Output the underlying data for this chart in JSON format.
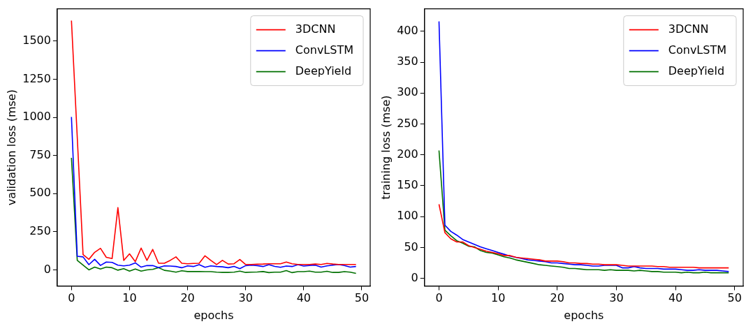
{
  "chart_data": [
    {
      "type": "line",
      "xlabel": "epochs",
      "ylabel": "validation loss (mse)",
      "xlim": [
        -2.45,
        51.45
      ],
      "ylim": [
        -106,
        1712
      ],
      "xticks": [
        0,
        10,
        20,
        30,
        40,
        50
      ],
      "yticks": [
        0,
        250,
        500,
        750,
        1000,
        1250,
        1500
      ],
      "x": [
        0,
        1,
        2,
        3,
        4,
        5,
        6,
        7,
        8,
        9,
        10,
        11,
        12,
        13,
        14,
        15,
        16,
        17,
        18,
        19,
        20,
        21,
        22,
        23,
        24,
        25,
        26,
        27,
        28,
        29,
        30,
        31,
        32,
        33,
        34,
        35,
        36,
        37,
        38,
        39,
        40,
        41,
        42,
        43,
        44,
        45,
        46,
        47,
        48,
        49
      ],
      "legend": "top right",
      "grid": false,
      "series": [
        {
          "name": "3DCNN",
          "color": "#ff0000",
          "values": [
            1635,
            870,
            100,
            69,
            115,
            141,
            82,
            74,
            408,
            62,
            105,
            54,
            143,
            62,
            134,
            43,
            43,
            62,
            85,
            43,
            40,
            42,
            43,
            92,
            62,
            35,
            62,
            38,
            40,
            68,
            35,
            35,
            37,
            38,
            40,
            40,
            40,
            51,
            40,
            35,
            35,
            35,
            38,
            35,
            42,
            38,
            35,
            35,
            35,
            35
          ]
        },
        {
          "name": "ConvLSTM",
          "color": "#0000ff",
          "values": [
            1003,
            89,
            85,
            34,
            69,
            29,
            51,
            49,
            31,
            26,
            31,
            46,
            18,
            28,
            28,
            15,
            26,
            25,
            22,
            14,
            26,
            22,
            34,
            17,
            26,
            22,
            20,
            14,
            23,
            8,
            28,
            31,
            28,
            22,
            34,
            23,
            17,
            25,
            22,
            34,
            25,
            29,
            31,
            18,
            26,
            31,
            35,
            28,
            18,
            22
          ]
        },
        {
          "name": "DeepYield",
          "color": "#007000",
          "values": [
            735,
            62,
            31,
            0,
            18,
            6,
            18,
            14,
            -2,
            8,
            -8,
            6,
            -8,
            0,
            3,
            15,
            -3,
            -8,
            -15,
            -6,
            -11,
            -11,
            -11,
            -12,
            -12,
            -15,
            -17,
            -17,
            -15,
            -8,
            -17,
            -15,
            -14,
            -11,
            -18,
            -15,
            -15,
            -5,
            -18,
            -12,
            -12,
            -8,
            -15,
            -15,
            -9,
            -17,
            -17,
            -12,
            -15,
            -23
          ]
        }
      ]
    },
    {
      "type": "line",
      "xlabel": "epochs",
      "ylabel": "training loss (mse)",
      "xlim": [
        -2.45,
        51.45
      ],
      "ylim": [
        -12.4,
        436.4
      ],
      "xticks": [
        0,
        10,
        20,
        30,
        40,
        50
      ],
      "yticks": [
        0,
        50,
        100,
        150,
        200,
        250,
        300,
        350,
        400
      ],
      "x": [
        0,
        1,
        2,
        3,
        4,
        5,
        6,
        7,
        8,
        9,
        10,
        11,
        12,
        13,
        14,
        15,
        16,
        17,
        18,
        19,
        20,
        21,
        22,
        23,
        24,
        25,
        26,
        27,
        28,
        29,
        30,
        31,
        32,
        33,
        34,
        35,
        36,
        37,
        38,
        39,
        40,
        41,
        42,
        43,
        44,
        45,
        46,
        47,
        48,
        49
      ],
      "legend": "top right",
      "grid": false,
      "series": [
        {
          "name": "3DCNN",
          "color": "#ff0000",
          "values": [
            120,
            74,
            64,
            59,
            59,
            53,
            50,
            47,
            44,
            42,
            40,
            37,
            37,
            34,
            33,
            32,
            31,
            30,
            28,
            28,
            28,
            27,
            25,
            25,
            24,
            24,
            23,
            23,
            22,
            22,
            22,
            21,
            20,
            20,
            20,
            20,
            20,
            19,
            19,
            18,
            18,
            18,
            18,
            18,
            17,
            17,
            17,
            17,
            17,
            17
          ]
        },
        {
          "name": "ConvLSTM",
          "color": "#0000ff",
          "values": [
            416,
            86,
            76,
            70,
            63,
            59,
            55,
            51,
            48,
            45,
            42,
            39,
            36,
            34,
            32,
            30,
            29,
            28,
            27,
            25,
            25,
            24,
            23,
            22,
            22,
            21,
            20,
            20,
            21,
            21,
            21,
            17,
            17,
            19,
            17,
            16,
            16,
            16,
            15,
            15,
            15,
            14,
            13,
            13,
            14,
            13,
            13,
            13,
            12,
            11
          ]
        },
        {
          "name": "DeepYield",
          "color": "#007000",
          "values": [
            207,
            78,
            69,
            61,
            57,
            52,
            51,
            45,
            42,
            41,
            38,
            35,
            33,
            30,
            28,
            26,
            24,
            22,
            21,
            20,
            19,
            18,
            16,
            16,
            15,
            14,
            14,
            14,
            13,
            14,
            13,
            13,
            13,
            12,
            13,
            12,
            11,
            11,
            10,
            10,
            10,
            9,
            10,
            9,
            9,
            10,
            9,
            9,
            9,
            9
          ]
        }
      ]
    }
  ]
}
